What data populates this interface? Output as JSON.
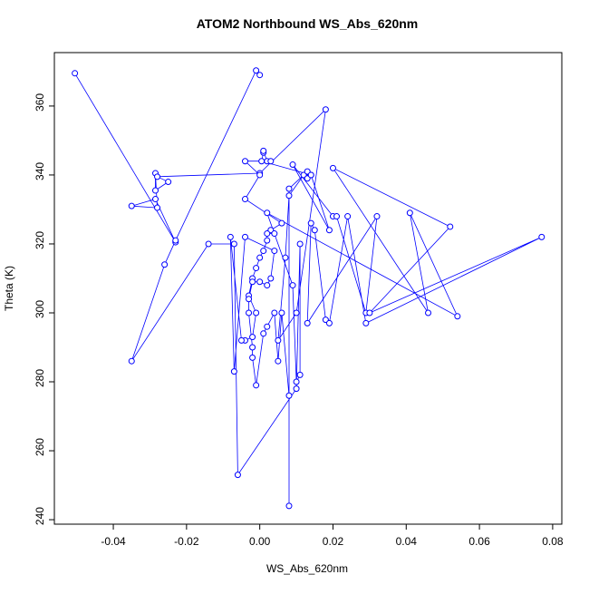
{
  "chart_data": {
    "type": "scatter",
    "title": "ATOM2 Northbound WS_Abs_620nm",
    "x_label": "WS_Abs_620nm",
    "y_label": "Theta (K)",
    "color": "#0000ff",
    "connect": true,
    "x": [
      -0.0505,
      -0.023,
      -0.0285,
      -0.035,
      -0.028,
      -0.0285,
      -0.0285,
      -0.025,
      -0.028,
      0.0,
      0.018,
      0.01,
      0.005,
      0.007,
      0.008,
      0.012,
      0.014,
      0.0005,
      0.001,
      0.001,
      0.002,
      0.003,
      -0.004,
      0.0,
      -0.004,
      0.006,
      0.003,
      0.004,
      0.002,
      0.002,
      0.001,
      0.0,
      -0.001,
      -0.002,
      -0.003,
      -0.001,
      -0.002,
      -0.004,
      -0.005,
      -0.008,
      -0.007,
      -0.004,
      0.004,
      0.003,
      0.002,
      0.0,
      -0.002,
      -0.003,
      -0.003,
      -0.002,
      -0.002,
      -0.001,
      0.001,
      0.002,
      0.004,
      0.005,
      0.006,
      0.008,
      0.008,
      0.008,
      0.013,
      0.013,
      0.014,
      0.019,
      0.009,
      0.02,
      0.021,
      0.029,
      0.032,
      0.013,
      0.014,
      0.015,
      0.018,
      0.019,
      0.024,
      0.029,
      0.077,
      0.03,
      0.052,
      0.02,
      0.046,
      0.041,
      0.054,
      0.002,
      0.009,
      0.01,
      0.011,
      0.011,
      0.01,
      -0.006,
      -0.007,
      -0.014,
      -0.035,
      -0.026,
      -0.023,
      -0.001,
      0.0
    ],
    "y": [
      369.5,
      320.5,
      333,
      331,
      330.5,
      340.5,
      335.5,
      338,
      339.5,
      340.5,
      359,
      300,
      292,
      316,
      334,
      340,
      340,
      344,
      346.5,
      347,
      344,
      344,
      344,
      340,
      333,
      326,
      324,
      323,
      323,
      321,
      318,
      316,
      313,
      310,
      305,
      300,
      293,
      292,
      292,
      322,
      283,
      322,
      318,
      310,
      308,
      309,
      309,
      304,
      300,
      290,
      287,
      279,
      294,
      296,
      300,
      286,
      300,
      276,
      244,
      336,
      341,
      339,
      340,
      324,
      343,
      328,
      328,
      300,
      328,
      297,
      326,
      324,
      298,
      297,
      328,
      297,
      322,
      300,
      325,
      342,
      300,
      329,
      299,
      329,
      308,
      280,
      282,
      320,
      278,
      253,
      320,
      320,
      286,
      314,
      321,
      370.3,
      369
    ],
    "xlim": [
      -0.0561,
      0.0825
    ],
    "ylim": [
      238.7,
      375.5
    ],
    "xticks": [
      -0.04,
      -0.02,
      {
        "value": 0,
        "label": "0.00"
      },
      0.02,
      0.04,
      0.06,
      0.08
    ],
    "yticks": [
      240,
      260,
      280,
      300,
      320,
      340,
      360
    ]
  }
}
